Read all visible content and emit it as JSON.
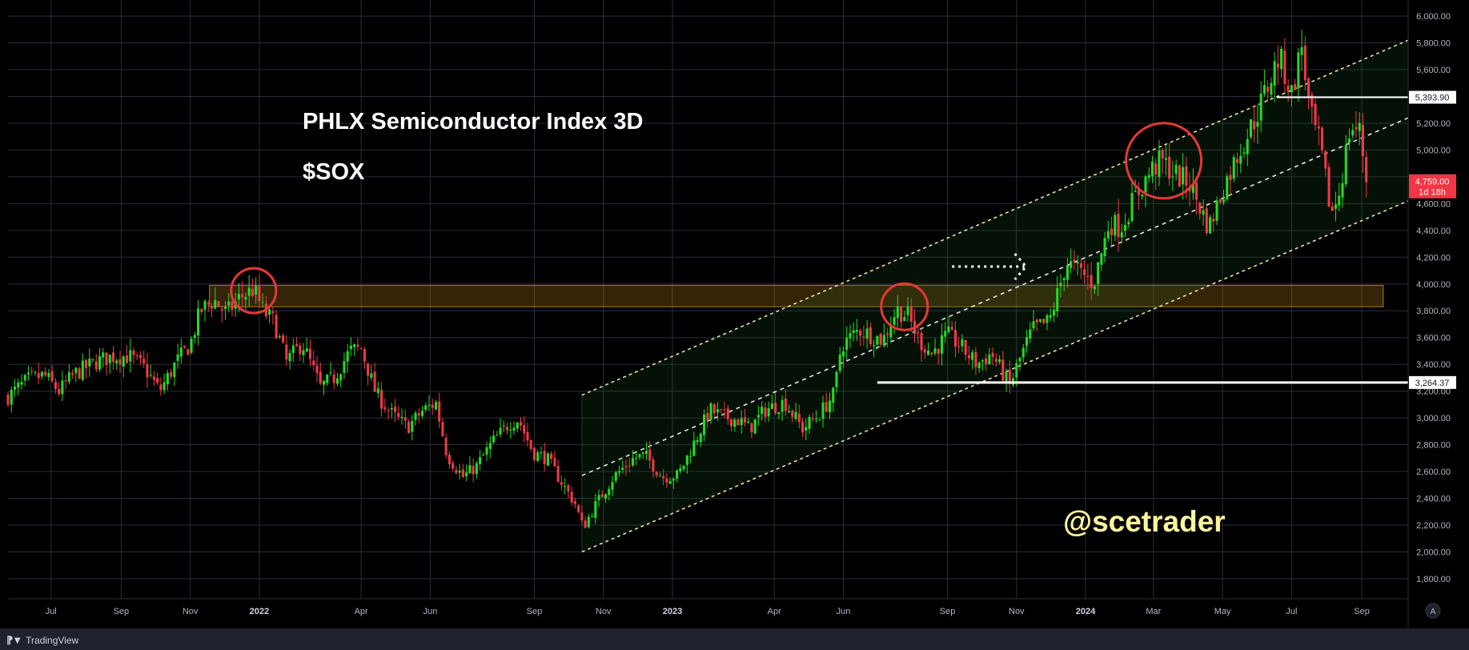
{
  "chart_data": {
    "type": "candlestick",
    "title": "PHLX Semiconductor Index 3D",
    "subtitle": "$SOX",
    "watermark": "@scetrader",
    "ylim": [
      1650,
      6120
    ],
    "y_ticks": [
      "1,800.00",
      "2,000.00",
      "2,200.00",
      "2,400.00",
      "2,600.00",
      "2,800.00",
      "3,000.00",
      "3,200.00",
      "3,400.00",
      "3,600.00",
      "3,800.00",
      "4,000.00",
      "4,200.00",
      "4,400.00",
      "4,600.00",
      "4,800.00",
      "5,000.00",
      "5,200.00",
      "5,400.00",
      "5,600.00",
      "5,800.00",
      "6,000.00"
    ],
    "x_ticks": [
      {
        "label": "Jul",
        "date": "2021-07-01",
        "year": false
      },
      {
        "label": "Sep",
        "date": "2021-09-01",
        "year": false
      },
      {
        "label": "Nov",
        "date": "2021-11-01",
        "year": false
      },
      {
        "label": "2022",
        "date": "2022-01-01",
        "year": true
      },
      {
        "label": "Apr",
        "date": "2022-04-01",
        "year": false
      },
      {
        "label": "Jun",
        "date": "2022-06-01",
        "year": false
      },
      {
        "label": "Sep",
        "date": "2022-09-01",
        "year": false
      },
      {
        "label": "Nov",
        "date": "2022-11-01",
        "year": false
      },
      {
        "label": "2023",
        "date": "2023-01-01",
        "year": true
      },
      {
        "label": "Apr",
        "date": "2023-04-01",
        "year": false
      },
      {
        "label": "Jun",
        "date": "2023-06-01",
        "year": false
      },
      {
        "label": "Sep",
        "date": "2023-09-01",
        "year": false
      },
      {
        "label": "Nov",
        "date": "2023-11-01",
        "year": false
      },
      {
        "label": "2024",
        "date": "2024-01-01",
        "year": true
      },
      {
        "label": "Mar",
        "date": "2024-03-01",
        "year": false
      },
      {
        "label": "May",
        "date": "2024-05-01",
        "year": false
      },
      {
        "label": "Jul",
        "date": "2024-07-01",
        "year": false
      },
      {
        "label": "Sep",
        "date": "2024-09-01",
        "year": false
      }
    ],
    "x_range": [
      "2021-05-24",
      "2024-10-12"
    ],
    "grid": true,
    "colors": {
      "up": "#26d926",
      "down": "#f0394b",
      "grid": "#2a2e39",
      "channel": "#e8e4a0",
      "zone": "#f5a623",
      "circle": "#e53935",
      "line": "#ffffff",
      "tag_current": "#f23645"
    },
    "price_path": [
      [
        "2021-05-24",
        3160
      ],
      [
        "2021-06-10",
        3280
      ],
      [
        "2021-06-25",
        3320
      ],
      [
        "2021-07-08",
        3200
      ],
      [
        "2021-07-22",
        3330
      ],
      [
        "2021-08-10",
        3420
      ],
      [
        "2021-08-24",
        3460
      ],
      [
        "2021-09-08",
        3460
      ],
      [
        "2021-09-22",
        3370
      ],
      [
        "2021-10-05",
        3200
      ],
      [
        "2021-10-20",
        3420
      ],
      [
        "2021-11-01",
        3550
      ],
      [
        "2021-11-10",
        3800
      ],
      [
        "2021-11-22",
        3880
      ],
      [
        "2021-12-03",
        3780
      ],
      [
        "2021-12-15",
        3900
      ],
      [
        "2021-12-27",
        3960
      ],
      [
        "2022-01-05",
        3790
      ],
      [
        "2022-01-14",
        3720
      ],
      [
        "2022-01-25",
        3420
      ],
      [
        "2022-02-08",
        3560
      ],
      [
        "2022-02-24",
        3230
      ],
      [
        "2022-03-08",
        3300
      ],
      [
        "2022-03-22",
        3500
      ],
      [
        "2022-04-01",
        3520
      ],
      [
        "2022-04-14",
        3180
      ],
      [
        "2022-04-29",
        3020
      ],
      [
        "2022-05-12",
        2930
      ],
      [
        "2022-05-26",
        3060
      ],
      [
        "2022-06-06",
        3110
      ],
      [
        "2022-06-16",
        2720
      ],
      [
        "2022-06-30",
        2560
      ],
      [
        "2022-07-12",
        2640
      ],
      [
        "2022-07-26",
        2820
      ],
      [
        "2022-08-10",
        2960
      ],
      [
        "2022-08-18",
        2990
      ],
      [
        "2022-08-31",
        2740
      ],
      [
        "2022-09-12",
        2700
      ],
      [
        "2022-09-28",
        2480
      ],
      [
        "2022-10-07",
        2360
      ],
      [
        "2022-10-14",
        2180
      ],
      [
        "2022-10-25",
        2350
      ],
      [
        "2022-11-10",
        2560
      ],
      [
        "2022-11-28",
        2700
      ],
      [
        "2022-12-08",
        2720
      ],
      [
        "2022-12-23",
        2560
      ],
      [
        "2023-01-06",
        2570
      ],
      [
        "2023-01-24",
        2880
      ],
      [
        "2023-02-03",
        3060
      ],
      [
        "2023-02-15",
        3010
      ],
      [
        "2023-03-01",
        2980
      ],
      [
        "2023-03-10",
        2920
      ],
      [
        "2023-03-24",
        3060
      ],
      [
        "2023-04-10",
        3120
      ],
      [
        "2023-04-26",
        2920
      ],
      [
        "2023-05-10",
        3020
      ],
      [
        "2023-05-24",
        3180
      ],
      [
        "2023-05-30",
        3540
      ],
      [
        "2023-06-15",
        3660
      ],
      [
        "2023-07-06",
        3580
      ],
      [
        "2023-07-18",
        3810
      ],
      [
        "2023-07-28",
        3760
      ],
      [
        "2023-08-07",
        3580
      ],
      [
        "2023-08-18",
        3480
      ],
      [
        "2023-09-01",
        3620
      ],
      [
        "2023-09-12",
        3540
      ],
      [
        "2023-09-27",
        3400
      ],
      [
        "2023-10-10",
        3480
      ],
      [
        "2023-10-26",
        3240
      ],
      [
        "2023-11-03",
        3420
      ],
      [
        "2023-11-15",
        3660
      ],
      [
        "2023-11-30",
        3720
      ],
      [
        "2023-12-07",
        3920
      ],
      [
        "2023-12-15",
        4160
      ],
      [
        "2023-12-29",
        4080
      ],
      [
        "2024-01-08",
        4000
      ],
      [
        "2024-01-22",
        4460
      ],
      [
        "2024-02-01",
        4420
      ],
      [
        "2024-02-12",
        4620
      ],
      [
        "2024-02-28",
        4850
      ],
      [
        "2024-03-08",
        4920
      ],
      [
        "2024-03-20",
        4820
      ],
      [
        "2024-04-02",
        4750
      ],
      [
        "2024-04-19",
        4420
      ],
      [
        "2024-05-01",
        4700
      ],
      [
        "2024-05-15",
        4980
      ],
      [
        "2024-05-29",
        5220
      ],
      [
        "2024-06-10",
        5480
      ],
      [
        "2024-06-20",
        5700
      ],
      [
        "2024-07-01",
        5420
      ],
      [
        "2024-07-10",
        5780
      ],
      [
        "2024-07-17",
        5280
      ],
      [
        "2024-07-26",
        5040
      ],
      [
        "2024-08-05",
        4520
      ],
      [
        "2024-08-12",
        4680
      ],
      [
        "2024-08-22",
        5180
      ],
      [
        "2024-08-30",
        5140
      ],
      [
        "2024-09-06",
        4759
      ]
    ],
    "annotations": {
      "resistance_zone": {
        "from": "2021-11-18",
        "to": "2024-09-20",
        "low": 3830,
        "high": 3990
      },
      "channel": {
        "start": "2022-10-13",
        "end": "2024-10-12",
        "lower": [
          2000,
          4620
        ],
        "middle": [
          2570,
          5240
        ],
        "upper": [
          3170,
          5820
        ]
      },
      "support_line": {
        "from": "2023-07-01",
        "to": "2024-10-12",
        "price": 3264.37,
        "label": "3,264.37"
      },
      "resistance_line": {
        "from": "2024-06-18",
        "to": "2024-10-12",
        "price": 5393.9,
        "label": "5,393.90"
      },
      "circles": [
        {
          "date": "2021-12-27",
          "price": 3950
        },
        {
          "date": "2023-07-25",
          "price": 3830
        },
        {
          "date": "2024-03-10",
          "price": 4920
        }
      ],
      "arrow": {
        "from": "2023-09-05",
        "to": "2023-11-08",
        "price": 4130
      }
    },
    "current_price": {
      "label": "4,759.00",
      "sub": "1d 18h",
      "price": 4759
    }
  },
  "footer": {
    "brand": "TradingView"
  },
  "scale_mode": "A"
}
